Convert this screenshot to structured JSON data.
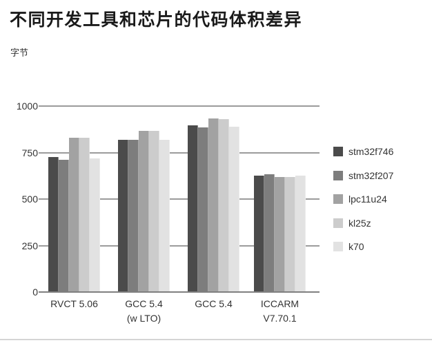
{
  "chart_data": {
    "type": "bar",
    "title": "不同开发工具和芯片的代码体积差异",
    "ylabel": "字节",
    "xlabel": "",
    "categories": [
      "RVCT 5.06",
      "GCC 5.4 (w LTO)",
      "GCC 5.4",
      "ICCARM V7.70.1"
    ],
    "category_lines": [
      [
        "RVCT 5.06"
      ],
      [
        "GCC 5.4",
        "(w LTO)"
      ],
      [
        "GCC 5.4"
      ],
      [
        "ICCARM",
        "V7.70.1"
      ]
    ],
    "series": [
      {
        "name": "stm32f746",
        "color": "#4b4b4b",
        "values": [
          725,
          820,
          895,
          625
        ]
      },
      {
        "name": "stm32f207",
        "color": "#7d7d7d",
        "values": [
          710,
          820,
          885,
          635
        ]
      },
      {
        "name": "lpc11u24",
        "color": "#a2a2a2",
        "values": [
          830,
          865,
          935,
          620
        ]
      },
      {
        "name": "kl25z",
        "color": "#cccccc",
        "values": [
          830,
          865,
          930,
          620
        ]
      },
      {
        "name": "k70",
        "color": "#e2e2e2",
        "values": [
          720,
          818,
          890,
          625
        ]
      }
    ],
    "ylim": [
      0,
      1000
    ],
    "yticks": [
      0,
      250,
      500,
      750,
      1000
    ],
    "grid": true,
    "legend_position": "right",
    "colors": {
      "gridline": "#9b9b9b",
      "baseline": "#7f7f7f",
      "text": "#333333",
      "title": "#1a1a1a",
      "divider": "#d4d4d4",
      "background": "#ffffff"
    }
  }
}
